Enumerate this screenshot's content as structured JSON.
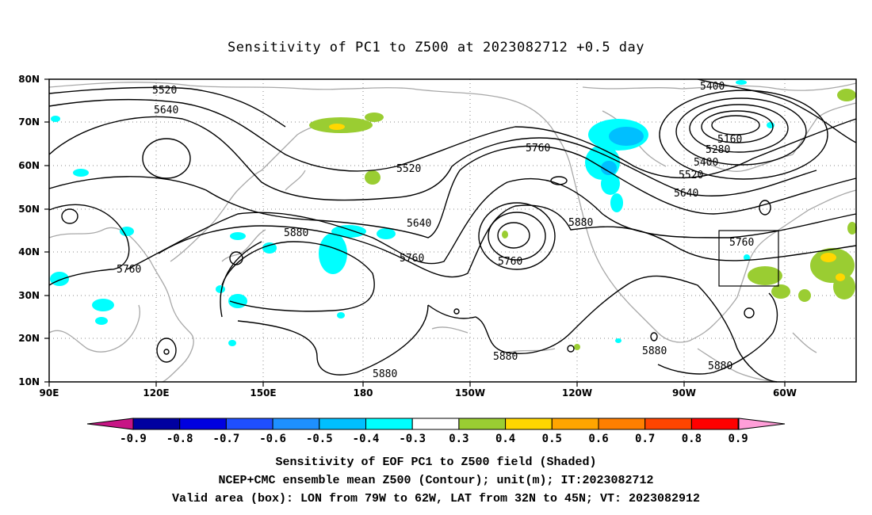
{
  "title": "Sensitivity of PC1 to Z500 at 2023082712 +0.5 day",
  "map": {
    "lon_ticks": [
      "90E",
      "120E",
      "150E",
      "180",
      "150W",
      "120W",
      "90W",
      "60W"
    ],
    "lat_ticks": [
      "80N",
      "70N",
      "60N",
      "50N",
      "40N",
      "30N",
      "20N",
      "10N"
    ],
    "contour_labels": [
      "5520",
      "5640",
      "5520",
      "5760",
      "5640",
      "5760",
      "5880",
      "5760",
      "5760",
      "5880",
      "5400",
      "5160",
      "5280",
      "5400",
      "5520",
      "5640",
      "5760",
      "5880",
      "5880",
      "5880",
      "5880"
    ],
    "box": {
      "lon_from": "79W",
      "lon_to": "62W",
      "lat_from": "32N",
      "lat_to": "45N"
    }
  },
  "colorbar": {
    "ticks": [
      "-0.9",
      "-0.8",
      "-0.7",
      "-0.6",
      "-0.5",
      "-0.4",
      "-0.3",
      "0.3",
      "0.4",
      "0.5",
      "0.6",
      "0.7",
      "0.8",
      "0.9"
    ],
    "colors": [
      "#0000a0",
      "#0000e0",
      "#1f4fff",
      "#1e90ff",
      "#00bfff",
      "#00ffff",
      "#ffffff",
      "#9acd32",
      "#ffd700",
      "#ffa500",
      "#ff7f00",
      "#ff4500",
      "#ff0000"
    ],
    "low_end_color": "#c71585",
    "high_end_color": "#ff9ed8"
  },
  "captions": {
    "line1": "Sensitivity of EOF PC1 to Z500 field (Shaded)",
    "line2": "NCEP+CMC ensemble mean Z500 (Contour); unit(m); IT:2023082712",
    "line3": "Valid area (box): LON from 79W to 62W, LAT from 32N to 45N; VT: 2023082912"
  }
}
